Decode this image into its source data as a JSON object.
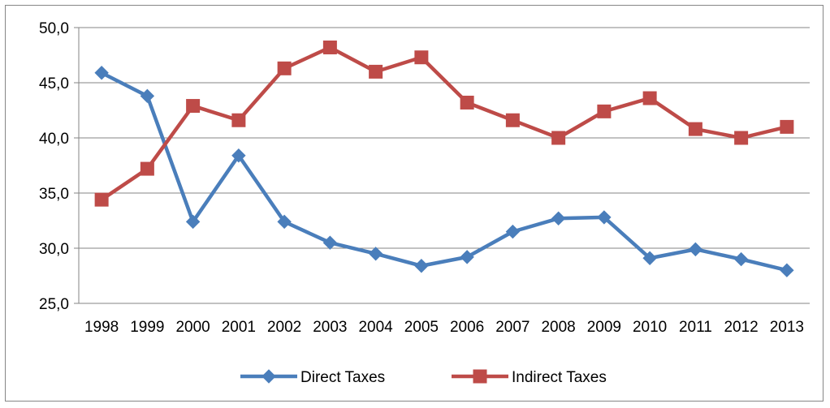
{
  "chart_data": {
    "type": "line",
    "title": "",
    "xlabel": "",
    "ylabel": "",
    "x": [
      "1998",
      "1999",
      "2000",
      "2001",
      "2002",
      "2003",
      "2004",
      "2005",
      "2006",
      "2007",
      "2008",
      "2009",
      "2010",
      "2011",
      "2012",
      "2013"
    ],
    "ylim": [
      25,
      50
    ],
    "yticks": [
      "25,0",
      "30,0",
      "35,0",
      "40,0",
      "45,0",
      "50,0"
    ],
    "grid": true,
    "legend": "bottom",
    "series": [
      {
        "name": "Direct Taxes",
        "color": "#4a7ebb",
        "marker": "diamond",
        "values": [
          45.9,
          43.8,
          32.4,
          38.4,
          32.4,
          30.5,
          29.5,
          28.4,
          29.2,
          31.5,
          32.7,
          32.8,
          29.1,
          29.9,
          29.0,
          28.0
        ]
      },
      {
        "name": "Indirect Taxes",
        "color": "#be4b48",
        "marker": "square",
        "values": [
          34.4,
          37.2,
          42.9,
          41.6,
          46.3,
          48.2,
          46.0,
          47.3,
          43.2,
          41.6,
          40.0,
          42.4,
          43.6,
          40.8,
          40.0,
          41.0
        ]
      }
    ]
  }
}
